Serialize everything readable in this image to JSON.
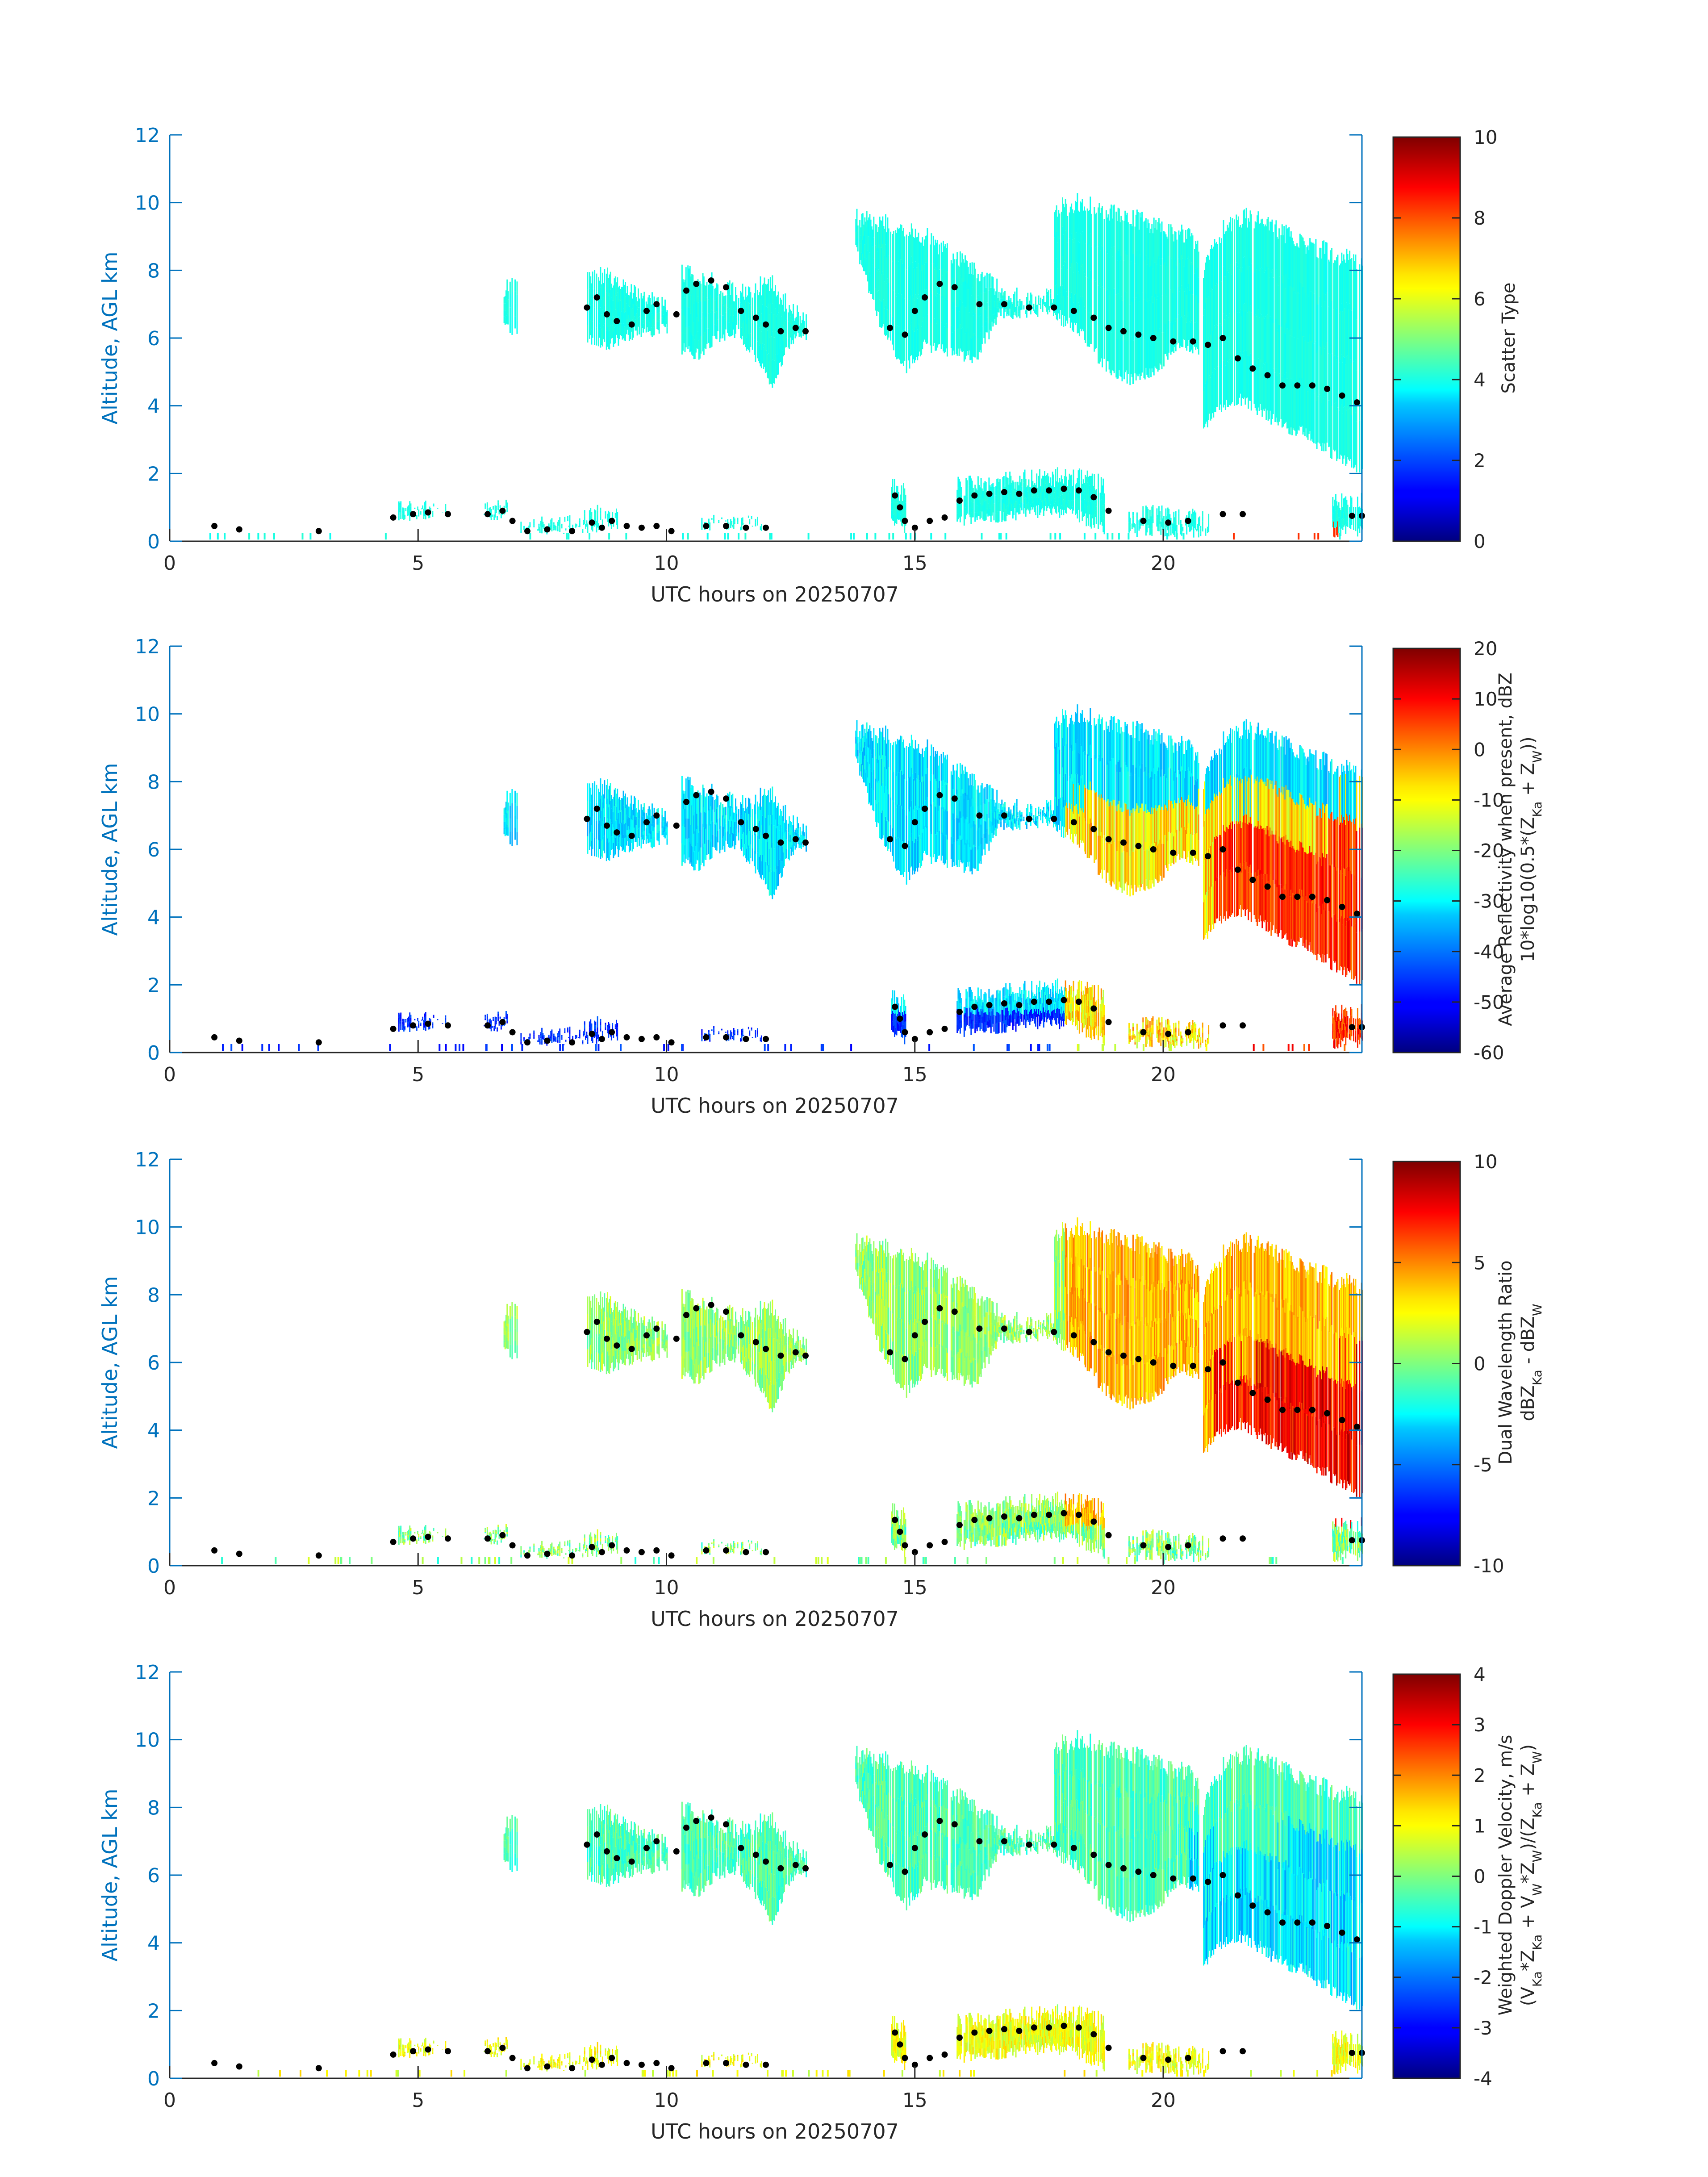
{
  "figure": {
    "date": "20250707"
  },
  "chart_data": [
    {
      "type": "heatmap",
      "panel": "scatter-type",
      "xlabel": "UTC hours on 20250707",
      "ylabel": "Altitude, AGL km",
      "xlim": [
        0,
        24
      ],
      "ylim": [
        0,
        12
      ],
      "xticks": [
        0,
        5,
        10,
        15,
        20
      ],
      "yticks": [
        0,
        2,
        4,
        6,
        8,
        10,
        12
      ],
      "colorbar": {
        "label": [
          "Scatter Type"
        ],
        "range": [
          0,
          10
        ],
        "ticks": [
          0,
          2,
          4,
          6,
          8,
          10
        ],
        "colormap": "jet"
      }
    },
    {
      "type": "heatmap",
      "panel": "reflectivity",
      "xlabel": "UTC hours on 20250707",
      "ylabel": "Altitude, AGL km",
      "xlim": [
        0,
        24
      ],
      "ylim": [
        0,
        12
      ],
      "xticks": [
        0,
        5,
        10,
        15,
        20
      ],
      "yticks": [
        0,
        2,
        4,
        6,
        8,
        10,
        12
      ],
      "colorbar": {
        "label": [
          "Average Reflectivity when present, dBZ",
          "10*log10(0.5*(Z_Ka + Z_W))"
        ],
        "range": [
          -60,
          20
        ],
        "ticks": [
          -60,
          -50,
          -40,
          -30,
          -20,
          -10,
          0,
          10,
          20
        ],
        "colormap": "jet"
      }
    },
    {
      "type": "heatmap",
      "panel": "dual-wavelength-ratio",
      "xlabel": "UTC hours on 20250707",
      "ylabel": "Altitude, AGL km",
      "xlim": [
        0,
        24
      ],
      "ylim": [
        0,
        12
      ],
      "xticks": [
        0,
        5,
        10,
        15,
        20
      ],
      "yticks": [
        0,
        2,
        4,
        6,
        8,
        10,
        12
      ],
      "colorbar": {
        "label": [
          "Dual Wavelength Ratio",
          "dBZ_Ka - dBZ_W"
        ],
        "range": [
          -10,
          10
        ],
        "ticks": [
          -10,
          -5,
          0,
          5,
          10
        ],
        "colormap": "jet"
      }
    },
    {
      "type": "heatmap",
      "panel": "doppler-velocity",
      "xlabel": "UTC hours on 20250707",
      "ylabel": "Altitude, AGL km",
      "xlim": [
        0,
        24
      ],
      "ylim": [
        0,
        12
      ],
      "xticks": [
        0,
        5,
        10,
        15,
        20
      ],
      "yticks": [
        0,
        2,
        4,
        6,
        8,
        10,
        12
      ],
      "colorbar": {
        "label": [
          "Weighted Doppler Velocity, m/s",
          "(V_Ka*Z_Ka + V_W*Z_W)/(Z_Ka + Z_W)"
        ],
        "range": [
          -4,
          4
        ],
        "ticks": [
          -4,
          -3,
          -2,
          -1,
          0,
          1,
          2,
          3,
          4
        ],
        "colormap": "jet"
      }
    }
  ],
  "cloud_regions": [
    {
      "x": [
        6.7,
        7.0
      ],
      "ymin": [
        6.2,
        6.0
      ],
      "ymax": [
        7.5,
        7.6
      ]
    },
    {
      "x": [
        8.4,
        8.8,
        9.2,
        9.6,
        10.0
      ],
      "ymin": [
        5.8,
        5.6,
        5.9,
        6.0,
        6.1
      ],
      "ymax": [
        7.9,
        7.8,
        7.5,
        7.2,
        7.0
      ]
    },
    {
      "x": [
        10.3,
        10.6,
        11.0,
        11.4,
        11.8,
        12.1,
        12.5,
        12.8
      ],
      "ymin": [
        5.5,
        5.3,
        5.8,
        6.0,
        5.2,
        4.4,
        5.8,
        5.9
      ],
      "ymax": [
        7.9,
        7.8,
        7.6,
        7.3,
        7.5,
        7.6,
        6.8,
        6.5
      ]
    },
    {
      "x": [
        13.8,
        14.3,
        14.8,
        15.2,
        15.7,
        16.2,
        16.7,
        17.2,
        17.7,
        18.0
      ],
      "ymin": [
        8.5,
        6.2,
        4.9,
        5.6,
        5.4,
        5.2,
        6.5,
        6.6,
        6.6,
        6.4
      ],
      "ymax": [
        9.6,
        9.4,
        9.2,
        9.0,
        8.5,
        8.0,
        7.4,
        7.1,
        7.2,
        7.4
      ]
    },
    {
      "x": [
        17.8,
        18.3,
        18.8,
        19.3,
        19.8,
        20.3,
        20.7
      ],
      "ymin": [
        6.5,
        6.0,
        5.0,
        4.6,
        4.8,
        5.6,
        5.5
      ],
      "ymax": [
        9.8,
        10.0,
        9.8,
        9.6,
        9.3,
        9.1,
        8.8
      ]
    },
    {
      "x": [
        20.8,
        21.2,
        21.6,
        22.0,
        22.4,
        22.8,
        23.2,
        23.6,
        24.0
      ],
      "ymin": [
        3.2,
        3.8,
        4.0,
        3.6,
        3.2,
        3.0,
        2.6,
        2.2,
        1.9
      ],
      "ymax": [
        8.0,
        9.2,
        9.6,
        9.4,
        9.1,
        8.8,
        8.6,
        8.4,
        8.2
      ]
    },
    {
      "x": [
        15.8,
        16.4,
        17.0,
        17.6,
        18.2,
        18.8
      ],
      "ymin": [
        0.4,
        0.5,
        0.6,
        0.7,
        0.6,
        0.2
      ],
      "ymax": [
        1.6,
        1.7,
        1.8,
        1.9,
        1.9,
        1.7
      ]
    },
    {
      "x": [
        14.5,
        14.8
      ],
      "ymin": [
        0.3,
        0.2
      ],
      "ymax": [
        1.6,
        1.4
      ]
    },
    {
      "x": [
        4.6,
        5.0,
        5.6
      ],
      "ymin": [
        0.5,
        0.6,
        0.7
      ],
      "ymax": [
        0.9,
        0.9,
        0.9
      ]
    },
    {
      "x": [
        6.3,
        6.8
      ],
      "ymin": [
        0.6,
        0.6
      ],
      "ymax": [
        1.0,
        1.0
      ]
    },
    {
      "x": [
        7.0,
        8.0,
        8.6,
        9.0
      ],
      "ymin": [
        0.15,
        0.2,
        0.25,
        0.3
      ],
      "ymax": [
        0.4,
        0.5,
        0.8,
        0.7
      ]
    },
    {
      "x": [
        10.7,
        11.2,
        11.9
      ],
      "ymin": [
        0.3,
        0.3,
        0.3
      ],
      "ymax": [
        0.5,
        0.5,
        0.5
      ]
    },
    {
      "x": [
        19.3,
        19.8,
        20.4,
        20.9
      ],
      "ymin": [
        0.1,
        0.15,
        0.1,
        0.1
      ],
      "ymax": [
        0.7,
        0.8,
        0.7,
        0.6
      ]
    },
    {
      "x": [
        23.4,
        24.0
      ],
      "ymin": [
        0.1,
        0.1
      ],
      "ymax": [
        1.1,
        1.2
      ]
    }
  ],
  "cloud_top_markers": [
    [
      0.9,
      0.45
    ],
    [
      1.4,
      0.35
    ],
    [
      3.0,
      0.3
    ],
    [
      4.5,
      0.7
    ],
    [
      4.9,
      0.8
    ],
    [
      5.2,
      0.85
    ],
    [
      5.6,
      0.8
    ],
    [
      6.4,
      0.8
    ],
    [
      6.7,
      0.9
    ],
    [
      6.9,
      0.6
    ],
    [
      7.2,
      0.3
    ],
    [
      7.6,
      0.35
    ],
    [
      8.1,
      0.3
    ],
    [
      8.5,
      0.55
    ],
    [
      8.7,
      0.4
    ],
    [
      8.9,
      0.6
    ],
    [
      9.2,
      0.45
    ],
    [
      9.5,
      0.4
    ],
    [
      9.8,
      0.45
    ],
    [
      10.1,
      0.3
    ],
    [
      10.8,
      0.45
    ],
    [
      11.2,
      0.45
    ],
    [
      11.6,
      0.4
    ],
    [
      12.0,
      0.4
    ],
    [
      14.6,
      1.35
    ],
    [
      14.7,
      1.0
    ],
    [
      14.8,
      0.6
    ],
    [
      15.0,
      0.4
    ],
    [
      15.3,
      0.6
    ],
    [
      15.6,
      0.7
    ],
    [
      15.9,
      1.2
    ],
    [
      16.2,
      1.35
    ],
    [
      16.5,
      1.4
    ],
    [
      16.8,
      1.45
    ],
    [
      17.1,
      1.4
    ],
    [
      17.4,
      1.5
    ],
    [
      17.7,
      1.5
    ],
    [
      18.0,
      1.55
    ],
    [
      18.3,
      1.5
    ],
    [
      18.6,
      1.3
    ],
    [
      18.9,
      0.9
    ],
    [
      19.6,
      0.6
    ],
    [
      20.1,
      0.55
    ],
    [
      20.5,
      0.6
    ],
    [
      21.2,
      0.8
    ],
    [
      21.6,
      0.8
    ],
    [
      23.8,
      0.75
    ],
    [
      24.0,
      0.75
    ],
    [
      8.4,
      6.9
    ],
    [
      8.6,
      7.2
    ],
    [
      8.8,
      6.7
    ],
    [
      9.0,
      6.5
    ],
    [
      9.3,
      6.4
    ],
    [
      9.6,
      6.8
    ],
    [
      9.8,
      7.0
    ],
    [
      10.2,
      6.7
    ],
    [
      10.4,
      7.4
    ],
    [
      10.6,
      7.6
    ],
    [
      10.9,
      7.7
    ],
    [
      11.2,
      7.5
    ],
    [
      11.5,
      6.8
    ],
    [
      11.8,
      6.6
    ],
    [
      12.0,
      6.4
    ],
    [
      12.3,
      6.2
    ],
    [
      12.6,
      6.3
    ],
    [
      12.8,
      6.2
    ],
    [
      14.5,
      6.3
    ],
    [
      14.8,
      6.1
    ],
    [
      15.0,
      6.8
    ],
    [
      15.2,
      7.2
    ],
    [
      15.5,
      7.6
    ],
    [
      15.8,
      7.5
    ],
    [
      16.3,
      7.0
    ],
    [
      16.8,
      7.0
    ],
    [
      17.3,
      6.9
    ],
    [
      17.8,
      6.9
    ],
    [
      18.2,
      6.8
    ],
    [
      18.6,
      6.6
    ],
    [
      18.9,
      6.3
    ],
    [
      19.2,
      6.2
    ],
    [
      19.5,
      6.1
    ],
    [
      19.8,
      6.0
    ],
    [
      20.2,
      5.9
    ],
    [
      20.6,
      5.9
    ],
    [
      20.9,
      5.8
    ],
    [
      21.2,
      6.0
    ],
    [
      21.5,
      5.4
    ],
    [
      21.8,
      5.1
    ],
    [
      22.1,
      4.9
    ],
    [
      22.4,
      4.6
    ],
    [
      22.7,
      4.6
    ],
    [
      23.0,
      4.6
    ],
    [
      23.3,
      4.5
    ],
    [
      23.6,
      4.3
    ],
    [
      23.9,
      4.1
    ]
  ]
}
